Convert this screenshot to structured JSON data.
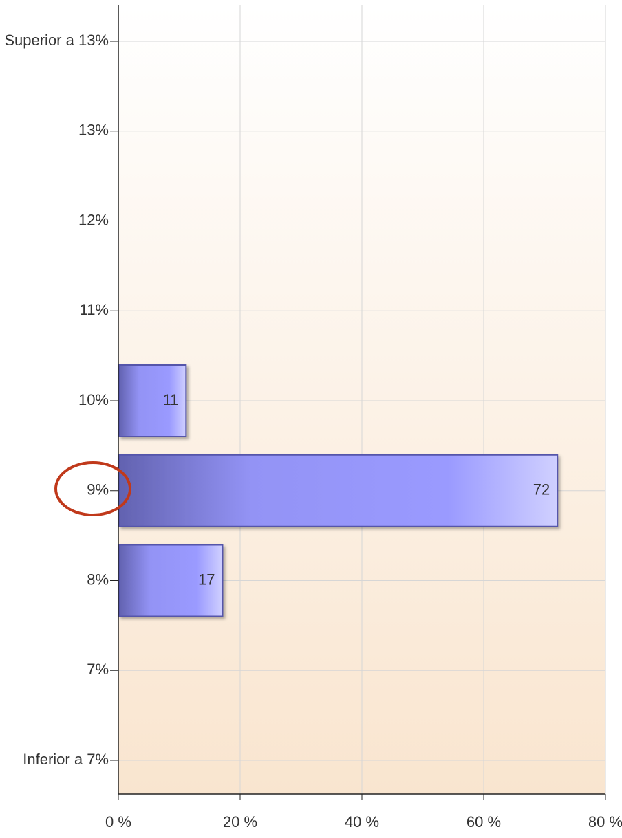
{
  "chart_data": {
    "type": "bar",
    "orientation": "horizontal",
    "categories": [
      "Superior a 13%",
      "13%",
      "12%",
      "11%",
      "10%",
      "9%",
      "8%",
      "7%",
      "Inferior a 7%"
    ],
    "values": [
      null,
      null,
      null,
      null,
      11,
      72,
      17,
      null,
      null
    ],
    "color": "#9999ff",
    "xlim": [
      0,
      80
    ],
    "xticks": [
      {
        "value": 0,
        "label": "0 %"
      },
      {
        "value": 20,
        "label": "20 %"
      },
      {
        "value": 40,
        "label": "40 %"
      },
      {
        "value": 60,
        "label": "60 %"
      },
      {
        "value": 80,
        "label": "80 %"
      }
    ],
    "grid": true
  }
}
